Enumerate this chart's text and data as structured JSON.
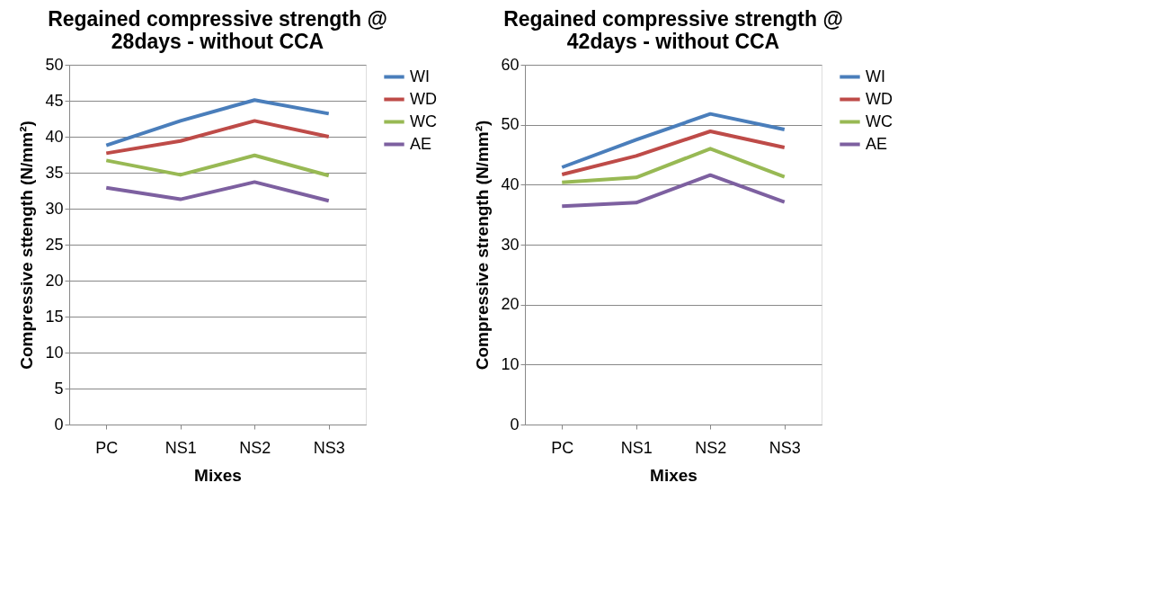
{
  "chart_data": [
    {
      "type": "line",
      "title": "Regained compressive strength @ 28days - without CCA",
      "xlabel": "Mixes",
      "ylabel": "Compressive sttength (N/mm²)",
      "categories": [
        "PC",
        "NS1",
        "NS2",
        "NS3"
      ],
      "ylim": [
        0,
        50
      ],
      "yticks": [
        0,
        5,
        10,
        15,
        20,
        25,
        30,
        35,
        40,
        45,
        50
      ],
      "grid": "y",
      "legend": "right",
      "marker": "none",
      "line_style": "solid",
      "series": [
        {
          "name": "WI",
          "color": "#4a7ebb",
          "values": [
            38.8,
            42.2,
            45.1,
            43.2
          ]
        },
        {
          "name": "WD",
          "color": "#be4b48",
          "values": [
            37.7,
            39.4,
            42.2,
            40.0
          ]
        },
        {
          "name": "WC",
          "color": "#98b954",
          "values": [
            36.7,
            34.7,
            37.4,
            34.6
          ]
        },
        {
          "name": "AE",
          "color": "#7d60a0",
          "values": [
            32.9,
            31.3,
            33.7,
            31.1
          ]
        }
      ]
    },
    {
      "type": "line",
      "title": "Regained compressive strength @ 42days - without CCA",
      "xlabel": "Mixes",
      "ylabel": "Compressive strength (N/mm²)",
      "categories": [
        "PC",
        "NS1",
        "NS2",
        "NS3"
      ],
      "ylim": [
        0,
        60
      ],
      "yticks": [
        0,
        10,
        20,
        30,
        40,
        50,
        60
      ],
      "grid": "y",
      "legend": "right",
      "marker": "none",
      "line_style": "solid",
      "series": [
        {
          "name": "WI",
          "color": "#4a7ebb",
          "values": [
            42.9,
            47.5,
            51.8,
            49.2
          ]
        },
        {
          "name": "WD",
          "color": "#be4b48",
          "values": [
            41.7,
            44.8,
            48.9,
            46.2
          ]
        },
        {
          "name": "WC",
          "color": "#98b954",
          "values": [
            40.4,
            41.2,
            46.0,
            41.3
          ]
        },
        {
          "name": "AE",
          "color": "#7d60a0",
          "values": [
            36.4,
            37.0,
            41.6,
            37.1
          ]
        }
      ]
    }
  ]
}
